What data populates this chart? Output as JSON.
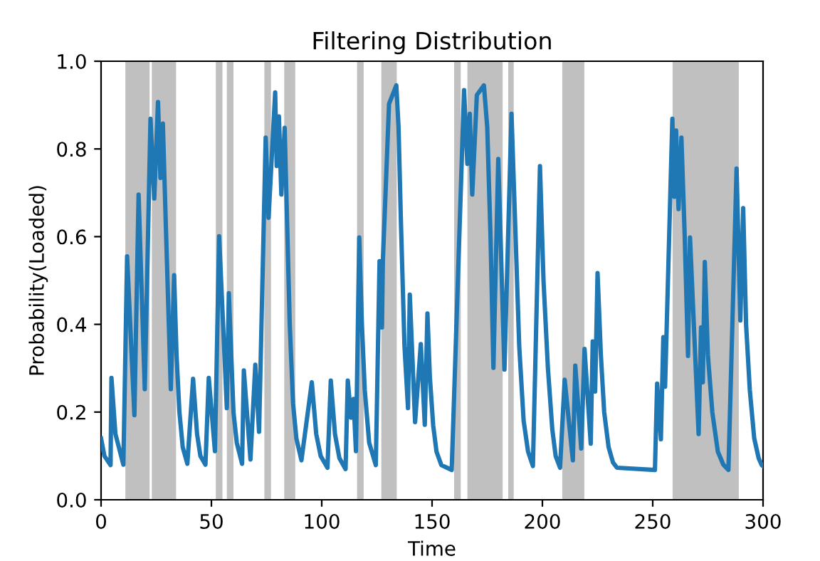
{
  "chart_data": {
    "type": "line",
    "title": "Filtering Distribution",
    "xlabel": "Time",
    "ylabel": "Probability(Loaded)",
    "xlim": [
      0,
      300
    ],
    "ylim": [
      0,
      1.0
    ],
    "xticks": [
      0,
      50,
      100,
      150,
      200,
      250,
      300
    ],
    "yticks": [
      {
        "value": 0,
        "label": "0.0"
      },
      0.2,
      0.4,
      0.6,
      0.8,
      {
        "value": 1.0,
        "label": "1.0"
      }
    ],
    "grid": false,
    "marker": "none",
    "line_style": "solid",
    "bands": [
      {
        "axis": "x",
        "from": 11,
        "to": 22,
        "color": "#c0c0c0"
      },
      {
        "axis": "x",
        "from": 23,
        "to": 34,
        "color": "#c0c0c0"
      },
      {
        "axis": "x",
        "from": 52,
        "to": 55,
        "color": "#c0c0c0"
      },
      {
        "axis": "x",
        "from": 57,
        "to": 60,
        "color": "#c0c0c0"
      },
      {
        "axis": "x",
        "from": 74,
        "to": 77,
        "color": "#c0c0c0"
      },
      {
        "axis": "x",
        "from": 83,
        "to": 88,
        "color": "#c0c0c0"
      },
      {
        "axis": "x",
        "from": 116,
        "to": 119,
        "color": "#c0c0c0"
      },
      {
        "axis": "x",
        "from": 127,
        "to": 134,
        "color": "#c0c0c0"
      },
      {
        "axis": "x",
        "from": 160,
        "to": 163,
        "color": "#c0c0c0"
      },
      {
        "axis": "x",
        "from": 166,
        "to": 182,
        "color": "#c0c0c0"
      },
      {
        "axis": "x",
        "from": 184.5,
        "to": 187,
        "color": "#c0c0c0"
      },
      {
        "axis": "x",
        "from": 209,
        "to": 219,
        "color": "#c0c0c0"
      },
      {
        "axis": "x",
        "from": 259,
        "to": 289,
        "color": "#c0c0c0"
      }
    ],
    "series": [
      {
        "color": "#1f77b4",
        "x": [
          0,
          1.5,
          4.3,
          4.7,
          6.5,
          10.1,
          11.8,
          15.1,
          17.0,
          19.8,
          22.4,
          24.1,
          25.8,
          26.9,
          28.0,
          29.5,
          31.6,
          33.1,
          34.2,
          35.5,
          37,
          39.1,
          41.7,
          43.5,
          45,
          47.3,
          48.8,
          51.6,
          53.5,
          57.0,
          57.9,
          60,
          61.5,
          63.9,
          64.7,
          67.7,
          69.9,
          71.6,
          74.6,
          75.9,
          78.9,
          79.6,
          80.6,
          81.7,
          83.2,
          85.5,
          87,
          88.5,
          90.8,
          95.5,
          97.5,
          99.5,
          102.6,
          104.1,
          106,
          108,
          110.8,
          111.8,
          113.3,
          114.4,
          115.5,
          117.0,
          118.2,
          119.5,
          121.5,
          124.5,
          126.2,
          127.3,
          127.7,
          130.5,
          133.8,
          134.8,
          135.9,
          137.5,
          139.1,
          139.9,
          142.3,
          144.9,
          146.7,
          147.9,
          149,
          150.5,
          152,
          154.2,
          158.9,
          164.5,
          166.0,
          167.1,
          168.2,
          170.3,
          173.5,
          175,
          176.5,
          177.8,
          180.0,
          182.8,
          186.0,
          189.5,
          191.5,
          193.5,
          195.7,
          198.9,
          200.5,
          202.5,
          204.5,
          206,
          208.0,
          210.1,
          213.8,
          214.9,
          217.6,
          219.1,
          221.9,
          222.8,
          223.9,
          225.0,
          226.5,
          228,
          230,
          232,
          233.8,
          251.0,
          252.0,
          253.7,
          254.8,
          255.6,
          258.9,
          259.8,
          260.6,
          261.7,
          263.0,
          264.5,
          266.0,
          266.9,
          270.8,
          271.9,
          272.7,
          273.6,
          275,
          277,
          279.5,
          282,
          284.3,
          288.0,
          289.7,
          291.0,
          292.3,
          294,
          296,
          298,
          299.4,
          300
        ],
        "values": [
          0.14,
          0.1,
          0.079,
          0.278,
          0.15,
          0.08,
          0.555,
          0.193,
          0.696,
          0.252,
          0.869,
          0.687,
          0.907,
          0.734,
          0.858,
          0.6,
          0.252,
          0.512,
          0.33,
          0.2,
          0.12,
          0.082,
          0.276,
          0.15,
          0.1,
          0.08,
          0.278,
          0.111,
          0.601,
          0.209,
          0.471,
          0.2,
          0.13,
          0.082,
          0.295,
          0.092,
          0.308,
          0.155,
          0.826,
          0.643,
          0.929,
          0.761,
          0.874,
          0.696,
          0.848,
          0.4,
          0.22,
          0.14,
          0.09,
          0.268,
          0.15,
          0.1,
          0.073,
          0.272,
          0.15,
          0.095,
          0.07,
          0.272,
          0.187,
          0.23,
          0.111,
          0.598,
          0.4,
          0.25,
          0.13,
          0.079,
          0.544,
          0.393,
          0.544,
          0.903,
          0.945,
          0.85,
          0.631,
          0.35,
          0.209,
          0.468,
          0.177,
          0.355,
          0.171,
          0.425,
          0.28,
          0.17,
          0.11,
          0.079,
          0.068,
          0.934,
          0.766,
          0.88,
          0.696,
          0.923,
          0.945,
          0.85,
          0.6,
          0.301,
          0.777,
          0.297,
          0.88,
          0.35,
          0.18,
          0.11,
          0.077,
          0.761,
          0.5,
          0.3,
          0.16,
          0.1,
          0.073,
          0.274,
          0.09,
          0.306,
          0.117,
          0.344,
          0.128,
          0.361,
          0.247,
          0.517,
          0.33,
          0.2,
          0.12,
          0.085,
          0.073,
          0.068,
          0.265,
          0.138,
          0.371,
          0.258,
          0.869,
          0.691,
          0.842,
          0.663,
          0.826,
          0.6,
          0.328,
          0.598,
          0.15,
          0.393,
          0.268,
          0.542,
          0.33,
          0.2,
          0.11,
          0.08,
          0.068,
          0.755,
          0.409,
          0.665,
          0.4,
          0.25,
          0.14,
          0.095,
          0.079,
          0.077
        ]
      }
    ]
  }
}
